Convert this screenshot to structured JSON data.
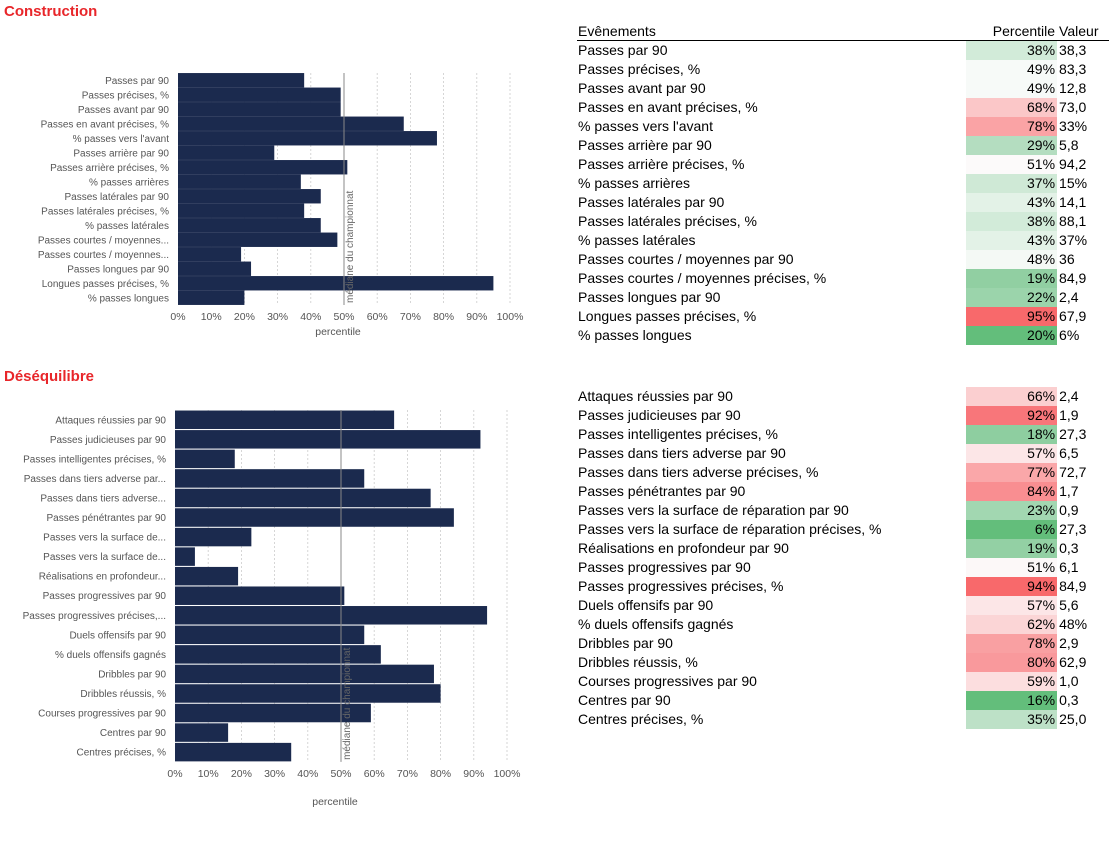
{
  "colors": {
    "title": "#e8262a",
    "bar": "#1b2a4e",
    "median_line": "#888888",
    "grid": "#cccccc",
    "red_strong": "#f8696b",
    "green_strong": "#63be7b"
  },
  "table_headers": {
    "events": "Evênements",
    "percentile": "Percentile",
    "value": "Valeur"
  },
  "chart_data": [
    {
      "type": "bar",
      "orientation": "horizontal",
      "title": "Construction",
      "xlabel": "percentile",
      "median_label": "médiane du championnat",
      "median": 50,
      "xlim": [
        0,
        100
      ],
      "xticks": [
        "0%",
        "10%",
        "20%",
        "30%",
        "40%",
        "50%",
        "60%",
        "70%",
        "80%",
        "90%",
        "100%"
      ],
      "categories": [
        "Passes par 90",
        "Passes précises, %",
        "Passes avant par 90",
        "Passes en avant précises, %",
        "% passes vers l'avant",
        "Passes arrière par 90",
        "Passes arrière précises, %",
        "% passes arrières",
        "Passes latérales par 90",
        "Passes latérales précises, %",
        "% passes latérales",
        "Passes courtes / moyennes...",
        "Passes courtes / moyennes...",
        "Passes longues par 90",
        "Longues passes précises, %",
        "% passes longues"
      ],
      "values": [
        38,
        49,
        49,
        68,
        78,
        29,
        51,
        37,
        43,
        38,
        43,
        48,
        19,
        22,
        95,
        20
      ]
    },
    {
      "type": "bar",
      "orientation": "horizontal",
      "title": "Déséquilibre",
      "xlabel": "percentile",
      "median_label": "médiane du championnat",
      "median": 50,
      "xlim": [
        0,
        100
      ],
      "xticks": [
        "0%",
        "10%",
        "20%",
        "30%",
        "40%",
        "50%",
        "60%",
        "70%",
        "80%",
        "90%",
        "100%"
      ],
      "categories": [
        "Attaques réussies par 90",
        "Passes judicieuses par 90",
        "Passes intelligentes précises, %",
        "Passes dans tiers adverse par...",
        "Passes dans tiers adverse...",
        "Passes pénétrantes par 90",
        "Passes vers la surface de...",
        "Passes vers la surface de...",
        "Réalisations en profondeur...",
        "Passes progressives par 90",
        "Passes progressives précises,...",
        "Duels offensifs par 90",
        "% duels offensifs gagnés",
        "Dribbles par 90",
        "Dribbles réussis, %",
        "Courses progressives par 90",
        "Centres par 90",
        "Centres précises, %"
      ],
      "values": [
        66,
        92,
        18,
        57,
        77,
        84,
        23,
        6,
        19,
        51,
        94,
        57,
        62,
        78,
        80,
        59,
        16,
        35
      ]
    }
  ],
  "tables": [
    {
      "rows": [
        {
          "name": "Passes par 90",
          "pct": "38%",
          "value": "38,3",
          "bg": "#d2ebd9"
        },
        {
          "name": "Passes précises, %",
          "pct": "49%",
          "value": "83,3",
          "bg": "#f7faf8"
        },
        {
          "name": "Passes avant par 90",
          "pct": "49%",
          "value": "12,8",
          "bg": "#f7faf8"
        },
        {
          "name": "Passes en avant précises, %",
          "pct": "68%",
          "value": "73,0",
          "bg": "#fbc7c8"
        },
        {
          "name": "% passes vers l'avant",
          "pct": "78%",
          "value": "33%",
          "bg": "#faa3a5"
        },
        {
          "name": "Passes arrière par 90",
          "pct": "29%",
          "value": "5,8",
          "bg": "#b4ddc0"
        },
        {
          "name": "Passes arrière précises, %",
          "pct": "51%",
          "value": "94,2",
          "bg": "#fcfafa"
        },
        {
          "name": "% passes arrières",
          "pct": "37%",
          "value": "15%",
          "bg": "#cfe9d6"
        },
        {
          "name": "Passes latérales par 90",
          "pct": "43%",
          "value": "14,1",
          "bg": "#e3f2e7"
        },
        {
          "name": "Passes latérales précises, %",
          "pct": "38%",
          "value": "88,1",
          "bg": "#d2ebd9"
        },
        {
          "name": "% passes latérales",
          "pct": "43%",
          "value": "37%",
          "bg": "#e3f2e7"
        },
        {
          "name": "Passes courtes / moyennes par 90",
          "pct": "48%",
          "value": "36",
          "bg": "#f4f9f5"
        },
        {
          "name": "Passes courtes / moyennes précises, %",
          "pct": "19%",
          "value": "84,9",
          "bg": "#91cfa2"
        },
        {
          "name": "Passes longues par 90",
          "pct": "22%",
          "value": "2,4",
          "bg": "#9bd4ab"
        },
        {
          "name": "Longues passes précises, %",
          "pct": "95%",
          "value": "67,9",
          "bg": "#f8696b"
        },
        {
          "name": "% passes longues",
          "pct": "20%",
          "value": "6%",
          "bg": "#63be7b"
        }
      ]
    },
    {
      "rows": [
        {
          "name": "Attaques réussies par 90",
          "pct": "66%",
          "value": "2,4",
          "bg": "#fbcfd0"
        },
        {
          "name": "Passes judicieuses par 90",
          "pct": "92%",
          "value": "1,9",
          "bg": "#f8767a"
        },
        {
          "name": "Passes intelligentes précises, %",
          "pct": "18%",
          "value": "27,3",
          "bg": "#8ecea0"
        },
        {
          "name": "Passes dans tiers adverse par 90",
          "pct": "57%",
          "value": "6,5",
          "bg": "#fce6e7"
        },
        {
          "name": "Passes dans tiers adverse précises, %",
          "pct": "77%",
          "value": "72,7",
          "bg": "#faa7a9"
        },
        {
          "name": "Passes pénétrantes par 90",
          "pct": "84%",
          "value": "1,7",
          "bg": "#f98e91"
        },
        {
          "name": "Passes vers la surface de réparation par 90",
          "pct": "23%",
          "value": "0,9",
          "bg": "#a2d7b1"
        },
        {
          "name": "Passes vers la surface de réparation précises, %",
          "pct": "6%",
          "value": "27,3",
          "bg": "#63be7b"
        },
        {
          "name": "Réalisations en profondeur par 90",
          "pct": "19%",
          "value": "0,3",
          "bg": "#93d0a4"
        },
        {
          "name": "Passes progressives par 90",
          "pct": "51%",
          "value": "6,1",
          "bg": "#fcf8f8"
        },
        {
          "name": "Passes progressives précises, %",
          "pct": "94%",
          "value": "84,9",
          "bg": "#f8696b"
        },
        {
          "name": "Duels offensifs par 90",
          "pct": "57%",
          "value": "5,6",
          "bg": "#fce6e7"
        },
        {
          "name": "% duels offensifs gagnés",
          "pct": "62%",
          "value": "48%",
          "bg": "#fbd5d6"
        },
        {
          "name": "Dribbles par 90",
          "pct": "78%",
          "value": "2,9",
          "bg": "#f9a0a2"
        },
        {
          "name": "Dribbles réussis, %",
          "pct": "80%",
          "value": "62,9",
          "bg": "#f9999c"
        },
        {
          "name": "Courses progressives par 90",
          "pct": "59%",
          "value": "1,0",
          "bg": "#fcdedf"
        },
        {
          "name": "Centres par 90",
          "pct": "16%",
          "value": "0,3",
          "bg": "#63be7b"
        },
        {
          "name": "Centres précises, %",
          "pct": "35%",
          "value": "25,0",
          "bg": "#bde1c7"
        }
      ]
    }
  ]
}
